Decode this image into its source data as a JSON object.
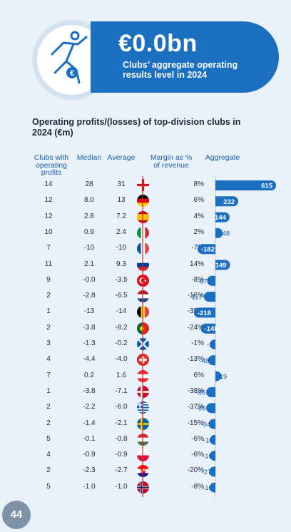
{
  "hero": {
    "value": "€0.0bn",
    "caption": "Clubs’ aggregate operating results level in 2024",
    "icon": "footballer-euro-icon"
  },
  "page_number": "44",
  "colors": {
    "primary": "#1a6fc1",
    "header_text": "#1c5fa8",
    "background": "#e9f1fa",
    "divider": "#c9302c"
  },
  "chart_data": {
    "type": "table",
    "title": "Operating profits/(losses) of top-division clubs in 2024 (€m)",
    "columns": [
      "Clubs with operating profits",
      "Median",
      "Average",
      "Margin as % of revenue",
      "Aggregate"
    ],
    "rows": [
      {
        "flag": "england",
        "clubs": "14",
        "median": "28",
        "average": "31",
        "margin": "8%",
        "aggregate": 615
      },
      {
        "flag": "germany",
        "clubs": "12",
        "median": "8.0",
        "average": "13",
        "margin": "6%",
        "aggregate": 232
      },
      {
        "flag": "spain",
        "clubs": "12",
        "median": "2.8",
        "average": "7.2",
        "margin": "4%",
        "aggregate": 144
      },
      {
        "flag": "italy",
        "clubs": "10",
        "median": "0.9",
        "average": "2.4",
        "margin": "2%",
        "aggregate": 48
      },
      {
        "flag": "france",
        "clubs": "7",
        "median": "-10",
        "average": "-10",
        "margin": "-7%",
        "aggregate": -182
      },
      {
        "flag": "russia",
        "clubs": "11",
        "median": "2.1",
        "average": "9.3",
        "margin": "14%",
        "aggregate": 149
      },
      {
        "flag": "turkey",
        "clubs": "9",
        "median": "-0.0",
        "average": "-3.5",
        "margin": "-8%",
        "aggregate": -67
      },
      {
        "flag": "netherlands",
        "clubs": "2",
        "median": "-2.8",
        "average": "-6.5",
        "margin": "-16%",
        "aggregate": -117
      },
      {
        "flag": "belgium",
        "clubs": "1",
        "median": "-13",
        "average": "-14",
        "margin": "-38%",
        "aggregate": -218
      },
      {
        "flag": "portugal",
        "clubs": "2",
        "median": "-3.8",
        "average": "-8.2",
        "margin": "-24%",
        "aggregate": -148
      },
      {
        "flag": "scotland",
        "clubs": "3",
        "median": "-1.3",
        "average": "-0.2",
        "margin": "-1%",
        "aggregate": -3
      },
      {
        "flag": "switzerland",
        "clubs": "4",
        "median": "-4.4",
        "average": "-4.0",
        "margin": "-13%",
        "aggregate": -48
      },
      {
        "flag": "austria",
        "clubs": "7",
        "median": "0.2",
        "average": "1.6",
        "margin": "6%",
        "aggregate": 19
      },
      {
        "flag": "denmark",
        "clubs": "1",
        "median": "-3.8",
        "average": "-7.1",
        "margin": "-38%",
        "aggregate": -85
      },
      {
        "flag": "greece",
        "clubs": "2",
        "median": "-2.2",
        "average": "-6.0",
        "margin": "-37%",
        "aggregate": -85
      },
      {
        "flag": "sweden",
        "clubs": "2",
        "median": "-1.4",
        "average": "-2.1",
        "margin": "-15%",
        "aggregate": -34
      },
      {
        "flag": "hungary",
        "clubs": "5",
        "median": "-0.1",
        "average": "-0.8",
        "margin": "-6%",
        "aggregate": -10
      },
      {
        "flag": "poland",
        "clubs": "4",
        "median": "-0.9",
        "average": "-0.9",
        "margin": "-6%",
        "aggregate": -16
      },
      {
        "flag": "croatia",
        "clubs": "2",
        "median": "-2.3",
        "average": "-2.7",
        "margin": "-20%",
        "aggregate": -27
      },
      {
        "flag": "norway",
        "clubs": "5",
        "median": "-1.0",
        "average": "-1.0",
        "margin": "-8%",
        "aggregate": -16
      }
    ]
  }
}
